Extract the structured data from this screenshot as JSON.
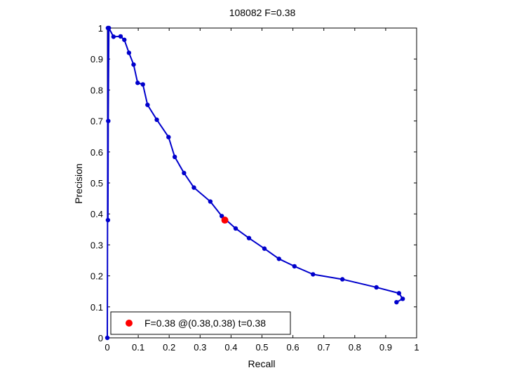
{
  "chart_data": {
    "type": "line",
    "title": "108082 F=0.38",
    "xlabel": "Recall",
    "ylabel": "Precision",
    "xlim": [
      0,
      1
    ],
    "ylim": [
      0,
      1
    ],
    "grid": true,
    "grid_style": "dotted",
    "x_ticks": [
      "0",
      "0.1",
      "0.2",
      "0.3",
      "0.4",
      "0.5",
      "0.6",
      "0.7",
      "0.8",
      "0.9",
      "1"
    ],
    "y_ticks": [
      "0",
      "0.1",
      "0.2",
      "0.3",
      "0.4",
      "0.5",
      "0.6",
      "0.7",
      "0.8",
      "0.9",
      "1"
    ],
    "legend_position": "bottom-left",
    "series": [
      {
        "color": "#0000cc",
        "line": "solid",
        "marker": "circle",
        "points": [
          [
            0.0,
            0.0
          ],
          [
            0.002,
            1.0
          ],
          [
            0.002,
            0.38
          ],
          [
            0.003,
            0.7
          ],
          [
            0.005,
            1.0
          ],
          [
            0.02,
            0.972
          ],
          [
            0.043,
            0.973
          ],
          [
            0.055,
            0.962
          ],
          [
            0.07,
            0.92
          ],
          [
            0.085,
            0.882
          ],
          [
            0.098,
            0.823
          ],
          [
            0.115,
            0.818
          ],
          [
            0.13,
            0.752
          ],
          [
            0.16,
            0.704
          ],
          [
            0.198,
            0.648
          ],
          [
            0.218,
            0.584
          ],
          [
            0.248,
            0.532
          ],
          [
            0.28,
            0.485
          ],
          [
            0.333,
            0.44
          ],
          [
            0.37,
            0.393
          ],
          [
            0.415,
            0.353
          ],
          [
            0.458,
            0.322
          ],
          [
            0.508,
            0.288
          ],
          [
            0.555,
            0.255
          ],
          [
            0.605,
            0.231
          ],
          [
            0.665,
            0.205
          ],
          [
            0.76,
            0.189
          ],
          [
            0.87,
            0.163
          ],
          [
            0.943,
            0.144
          ],
          [
            0.955,
            0.126
          ],
          [
            0.935,
            0.115
          ]
        ]
      }
    ],
    "best_point": {
      "recall": 0.38,
      "precision": 0.38,
      "color": "#ff0000",
      "marker": "circle"
    },
    "legend": {
      "entries": [
        {
          "label": "F=0.38 @(0.38,0.38) t=0.38",
          "color": "#ff0000",
          "marker": "circle"
        }
      ]
    }
  }
}
